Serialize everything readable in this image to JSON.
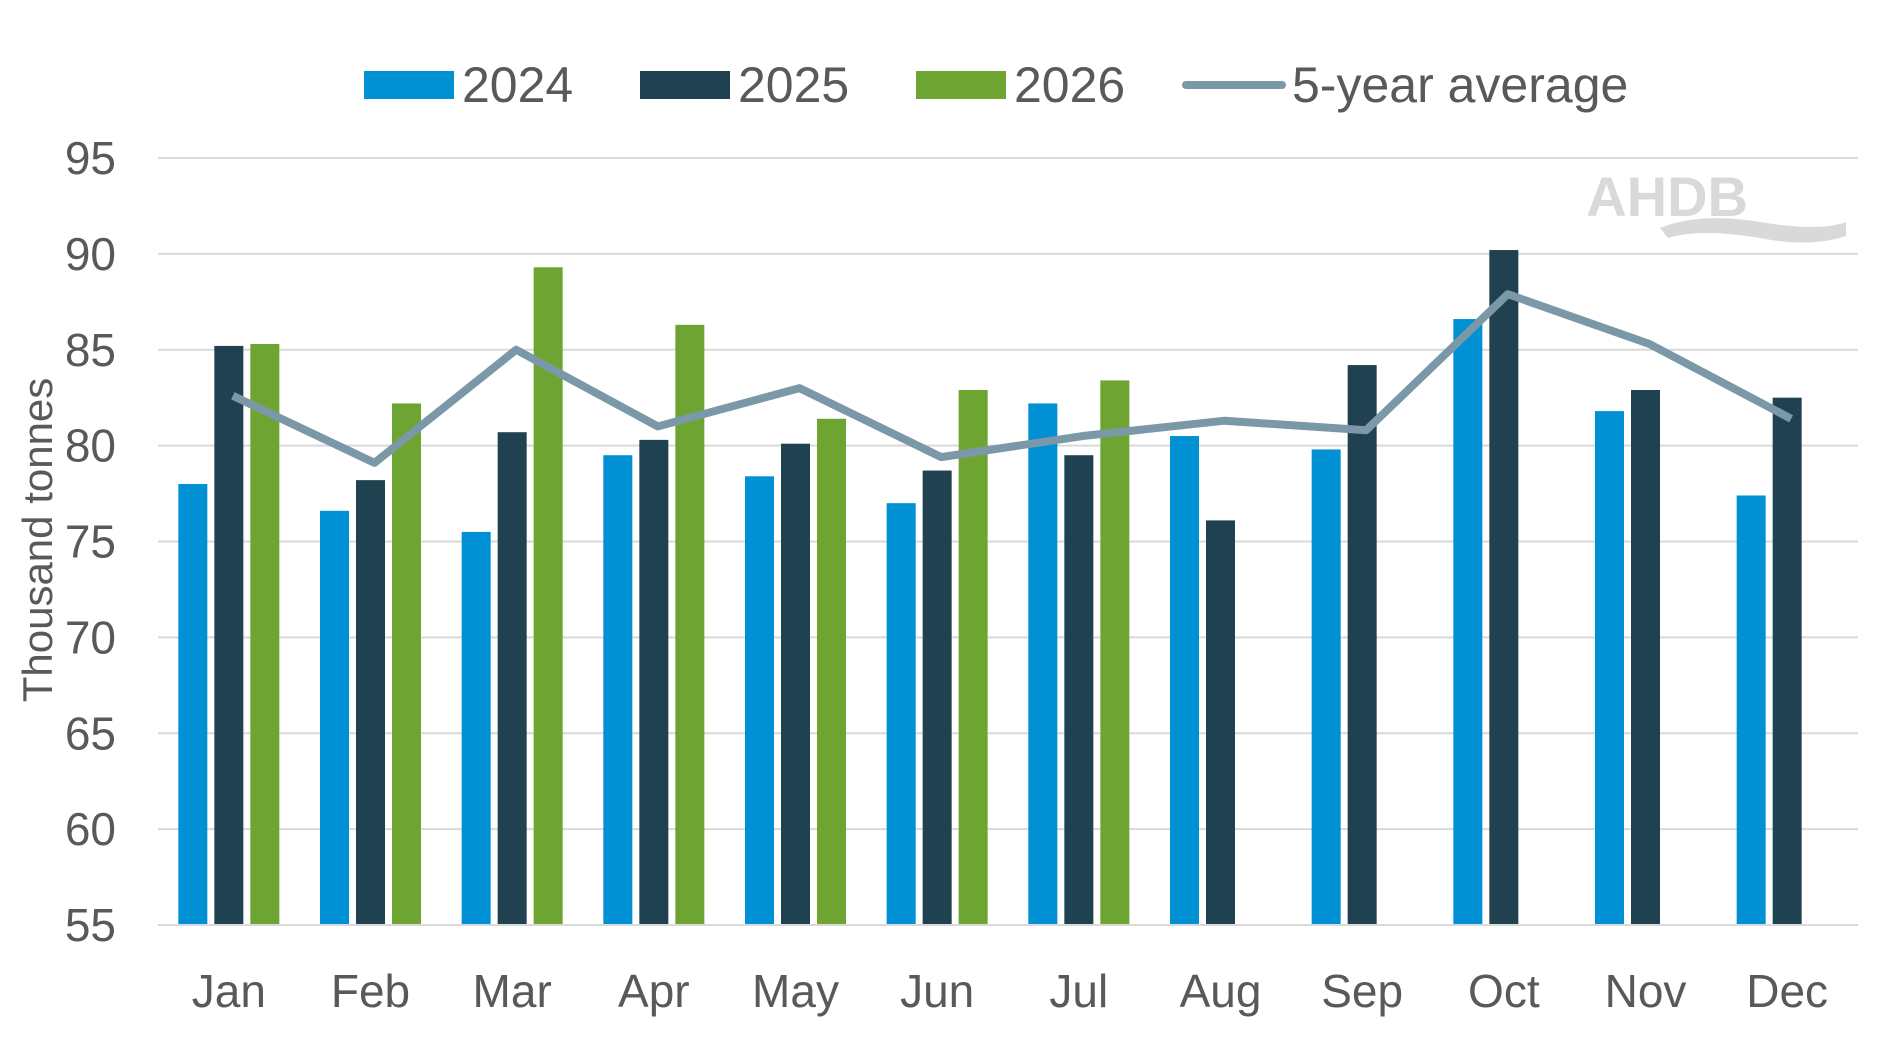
{
  "chart_data": {
    "type": "bar",
    "title": "",
    "xlabel": "",
    "ylabel": "Thousand tonnes",
    "ylim": [
      55,
      95
    ],
    "yticks": [
      55,
      60,
      65,
      70,
      75,
      80,
      85,
      90,
      95
    ],
    "grid": true,
    "legend_position": "top",
    "categories": [
      "Jan",
      "Feb",
      "Mar",
      "Apr",
      "May",
      "Jun",
      "Jul",
      "Aug",
      "Sep",
      "Oct",
      "Nov",
      "Dec"
    ],
    "series": [
      {
        "name": "2024",
        "type": "bar",
        "color": "#0090d4",
        "values": [
          78.0,
          76.6,
          75.5,
          79.5,
          78.4,
          77.0,
          82.2,
          80.5,
          79.8,
          86.6,
          81.8,
          77.4
        ]
      },
      {
        "name": "2025",
        "type": "bar",
        "color": "#1f4150",
        "values": [
          85.2,
          78.2,
          80.7,
          80.3,
          80.1,
          78.7,
          79.5,
          76.1,
          84.2,
          90.2,
          82.9,
          82.5
        ]
      },
      {
        "name": "2026",
        "type": "bar",
        "color": "#6ea431",
        "values": [
          85.3,
          82.2,
          89.3,
          86.3,
          81.4,
          82.9,
          83.4,
          null,
          null,
          null,
          null,
          null
        ]
      },
      {
        "name": "5-year average",
        "type": "line",
        "color": "#7b98a8",
        "values": [
          82.6,
          79.1,
          85.0,
          81.0,
          83.0,
          79.4,
          80.5,
          81.3,
          80.8,
          87.9,
          85.3,
          81.4
        ]
      }
    ],
    "watermark": "AHDB",
    "gridline_color": "#d9d9d9",
    "text_color": "#595959"
  }
}
